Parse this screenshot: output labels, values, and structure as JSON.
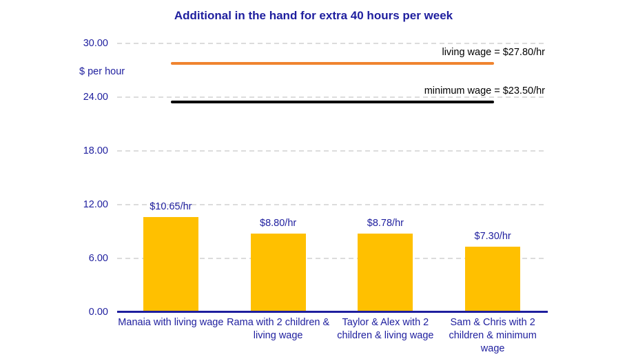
{
  "chart_data": {
    "type": "bar",
    "title": "Additional in the hand for extra 40 hours per week",
    "ylabel": "$ per hour",
    "xlabel": "",
    "ylim": [
      0,
      30
    ],
    "grid": "horizontal-dashed",
    "legend_position": "none",
    "yticks": [
      {
        "value": 0,
        "label": "0.00"
      },
      {
        "value": 6,
        "label": "6.00"
      },
      {
        "value": 12,
        "label": "12.00"
      },
      {
        "value": 18,
        "label": "18.00"
      },
      {
        "value": 24,
        "label": "24.00"
      },
      {
        "value": 30,
        "label": "30.00"
      }
    ],
    "categories": [
      "Manaia with living wage",
      "Rama with 2 children & living wage",
      "Taylor & Alex with 2 children & living wage",
      "Sam & Chris with 2 children & minimum wage"
    ],
    "values": [
      10.65,
      8.8,
      8.78,
      7.3
    ],
    "bar_value_labels": [
      "$10.65/hr",
      "$8.80/hr",
      "$8.78/hr",
      "$7.30/hr"
    ],
    "reference_lines": [
      {
        "name": "living-wage",
        "label": "living wage = $27.80/hr",
        "value": 27.8,
        "color": "#F0842F"
      },
      {
        "name": "minimum-wage",
        "label": "minimum wage = $23.50/hr",
        "value": 23.5,
        "color": "#000000"
      }
    ],
    "colors": {
      "bar": "#FFC000",
      "text": "#1E1E9E",
      "axis": "#1E1E9E",
      "gridline": "#DCDCDC",
      "ref_label_text": "#000000",
      "background": "#FFFFFF"
    }
  }
}
